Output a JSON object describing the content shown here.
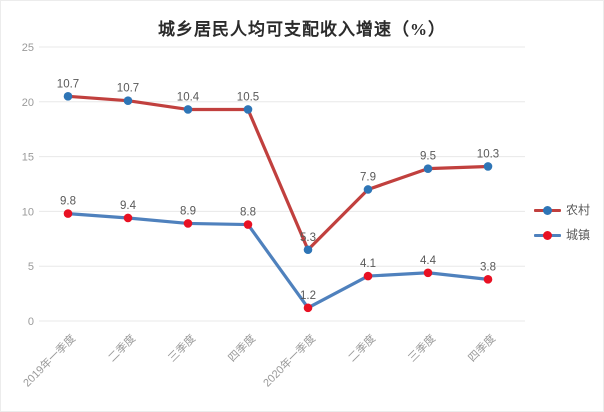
{
  "window": {
    "title": "城乡居民人均可支配收入增速（%）"
  },
  "chart_data": {
    "type": "line",
    "title": "城乡居民人均可支配收入增速（%）",
    "stacked": true,
    "grid": true,
    "legend_position": "right",
    "categories": [
      "2019年一季度",
      "二季度",
      "三季度",
      "四季度",
      "2020年一季度",
      "二季度",
      "三季度",
      "四季度"
    ],
    "series": [
      {
        "name": "农村",
        "values": [
          10.7,
          10.7,
          10.4,
          10.5,
          5.3,
          7.9,
          9.5,
          10.3
        ],
        "line_color": "#c1403e",
        "marker_color": "#2e75b6"
      },
      {
        "name": "城镇",
        "values": [
          9.8,
          9.4,
          8.9,
          8.8,
          1.2,
          4.1,
          4.4,
          3.8
        ],
        "line_color": "#4f81bd",
        "marker_color": "#e81123"
      }
    ],
    "ylim": [
      0,
      25
    ],
    "yticks": [
      0,
      5,
      10,
      15,
      20,
      25
    ],
    "colors": {
      "gridline": "#e8e8e8",
      "axis_text": "#9a9a9a",
      "data_label": "#595959",
      "title_text": "#2b2b2b"
    }
  }
}
